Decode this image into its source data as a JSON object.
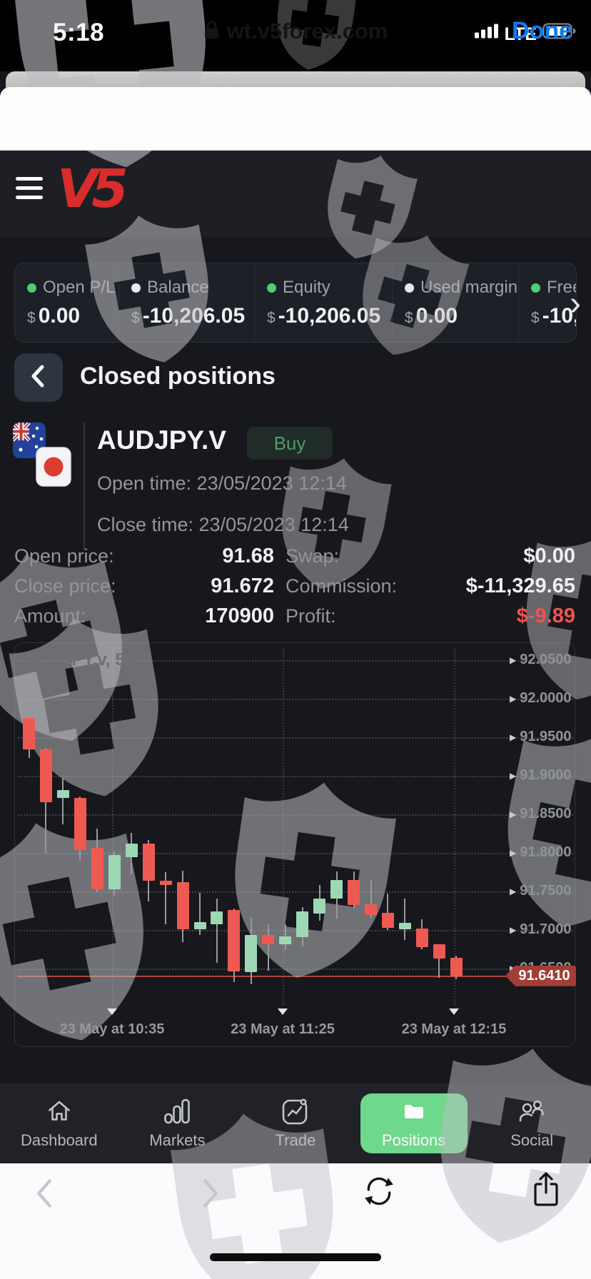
{
  "status_bar": {
    "time": "5:18",
    "network": "LTE",
    "signal_icon": "signal-bars-icon",
    "battery_icon": "battery-icon"
  },
  "browser_bar": {
    "lock_icon": "lock-icon",
    "url": "wt.v5forex.com",
    "done_label": "Done"
  },
  "header": {
    "menu_icon": "hamburger-menu-icon",
    "logo_text": "V5",
    "logo_color": "#d92c2c"
  },
  "stats": {
    "scroll_chevron": "›",
    "columns": [
      {
        "dot": "#4ece77",
        "label": "Open P/L",
        "currency": "$",
        "value": "0.00"
      },
      {
        "dot": "#e8e9ec",
        "label": "Balance",
        "currency": "$",
        "value": "-10,206.05"
      },
      {
        "dot": "#4ece77",
        "label": "Equity",
        "currency": "$",
        "value": "-10,206.05"
      },
      {
        "dot": "#e8e9ec",
        "label": "Used margin",
        "currency": "$",
        "value": "0.00"
      },
      {
        "dot": "#4ece77",
        "label": "Free",
        "currency": "$",
        "value": "-10,"
      }
    ]
  },
  "page": {
    "back_icon": "chevron-left-icon",
    "title": "Closed positions"
  },
  "position": {
    "symbol": "AUDJPY.V",
    "side": "Buy",
    "side_color": "#4f9c6b",
    "flags": [
      "australia-flag-icon",
      "japan-flag-icon"
    ],
    "open_time_text": "Open time: 23/05/2023 12:14",
    "close_time_text": "Close time: 23/05/2023 12:14",
    "details_left": [
      {
        "label": "Open price:",
        "value": "91.68"
      },
      {
        "label": "Close price:",
        "value": "91.672"
      },
      {
        "label": "Amount:",
        "value": "170900"
      }
    ],
    "details_right": [
      {
        "label": "Swap:",
        "value": "$0.00",
        "negative": false
      },
      {
        "label": "Commission:",
        "value": "$-11,329.65",
        "negative": false
      },
      {
        "label": "Profit:",
        "value": "$-9.89",
        "negative": true
      }
    ]
  },
  "chart_data": {
    "type": "candlestick",
    "title": "AUDJPY.v, 5M",
    "symbol": "AUDJPY.V",
    "timeframe": "5M",
    "y_top": 92.05,
    "y_step": 0.05,
    "y_ticks": [
      "92.0500",
      "92.0000",
      "91.9500",
      "91.9000",
      "91.8500",
      "91.8000",
      "91.7500",
      "91.7000",
      "91.6500"
    ],
    "x_ticks": [
      "23 May at 10:35",
      "23 May at 11:25",
      "23 May at 12:15"
    ],
    "price_line": 91.641,
    "price_label": "91.6410",
    "price_tag_color": "#a43d36",
    "up_color": "#9ed7b4",
    "down_color": "#ee5a52",
    "grid": true,
    "legend_position": "none",
    "candles": [
      {
        "o": 91.976,
        "h": 91.98,
        "l": 91.924,
        "c": 91.935
      },
      {
        "o": 91.935,
        "h": 91.937,
        "l": 91.801,
        "c": 91.867
      },
      {
        "o": 91.872,
        "h": 91.898,
        "l": 91.838,
        "c": 91.882
      },
      {
        "o": 91.872,
        "h": 91.874,
        "l": 91.791,
        "c": 91.805
      },
      {
        "o": 91.807,
        "h": 91.832,
        "l": 91.75,
        "c": 91.754
      },
      {
        "o": 91.754,
        "h": 91.803,
        "l": 91.745,
        "c": 91.798
      },
      {
        "o": 91.795,
        "h": 91.827,
        "l": 91.773,
        "c": 91.813
      },
      {
        "o": 91.813,
        "h": 91.818,
        "l": 91.738,
        "c": 91.765
      },
      {
        "o": 91.765,
        "h": 91.776,
        "l": 91.708,
        "c": 91.759
      },
      {
        "o": 91.763,
        "h": 91.778,
        "l": 91.685,
        "c": 91.702
      },
      {
        "o": 91.702,
        "h": 91.749,
        "l": 91.694,
        "c": 91.711
      },
      {
        "o": 91.708,
        "h": 91.742,
        "l": 91.658,
        "c": 91.725
      },
      {
        "o": 91.727,
        "h": 91.729,
        "l": 91.633,
        "c": 91.647
      },
      {
        "o": 91.646,
        "h": 91.717,
        "l": 91.631,
        "c": 91.694
      },
      {
        "o": 91.694,
        "h": 91.708,
        "l": 91.648,
        "c": 91.682
      },
      {
        "o": 91.682,
        "h": 91.708,
        "l": 91.675,
        "c": 91.693
      },
      {
        "o": 91.692,
        "h": 91.731,
        "l": 91.68,
        "c": 91.725
      },
      {
        "o": 91.722,
        "h": 91.759,
        "l": 91.713,
        "c": 91.742
      },
      {
        "o": 91.742,
        "h": 91.777,
        "l": 91.716,
        "c": 91.766
      },
      {
        "o": 91.766,
        "h": 91.777,
        "l": 91.729,
        "c": 91.733
      },
      {
        "o": 91.734,
        "h": 91.766,
        "l": 91.717,
        "c": 91.72
      },
      {
        "o": 91.723,
        "h": 91.748,
        "l": 91.701,
        "c": 91.704
      },
      {
        "o": 91.702,
        "h": 91.742,
        "l": 91.688,
        "c": 91.71
      },
      {
        "o": 91.703,
        "h": 91.715,
        "l": 91.676,
        "c": 91.679
      },
      {
        "o": 91.682,
        "h": 91.682,
        "l": 91.639,
        "c": 91.664
      },
      {
        "o": 91.665,
        "h": 91.668,
        "l": 91.637,
        "c": 91.641
      }
    ]
  },
  "bottom_nav": {
    "active_bg": "#6fd98b",
    "items": [
      {
        "label": "Dashboard",
        "icon": "home-icon",
        "active": false
      },
      {
        "label": "Markets",
        "icon": "bar-chart-icon",
        "active": false
      },
      {
        "label": "Trade",
        "icon": "trade-chart-icon",
        "active": false
      },
      {
        "label": "Positions",
        "icon": "folder-icon",
        "active": true
      },
      {
        "label": "Social",
        "icon": "people-icon",
        "active": false
      }
    ]
  },
  "browser_toolbar": {
    "buttons": [
      "back",
      "forward",
      "reload",
      "share"
    ]
  },
  "decor": {
    "watermark_icon": "shield-cross-icon"
  }
}
